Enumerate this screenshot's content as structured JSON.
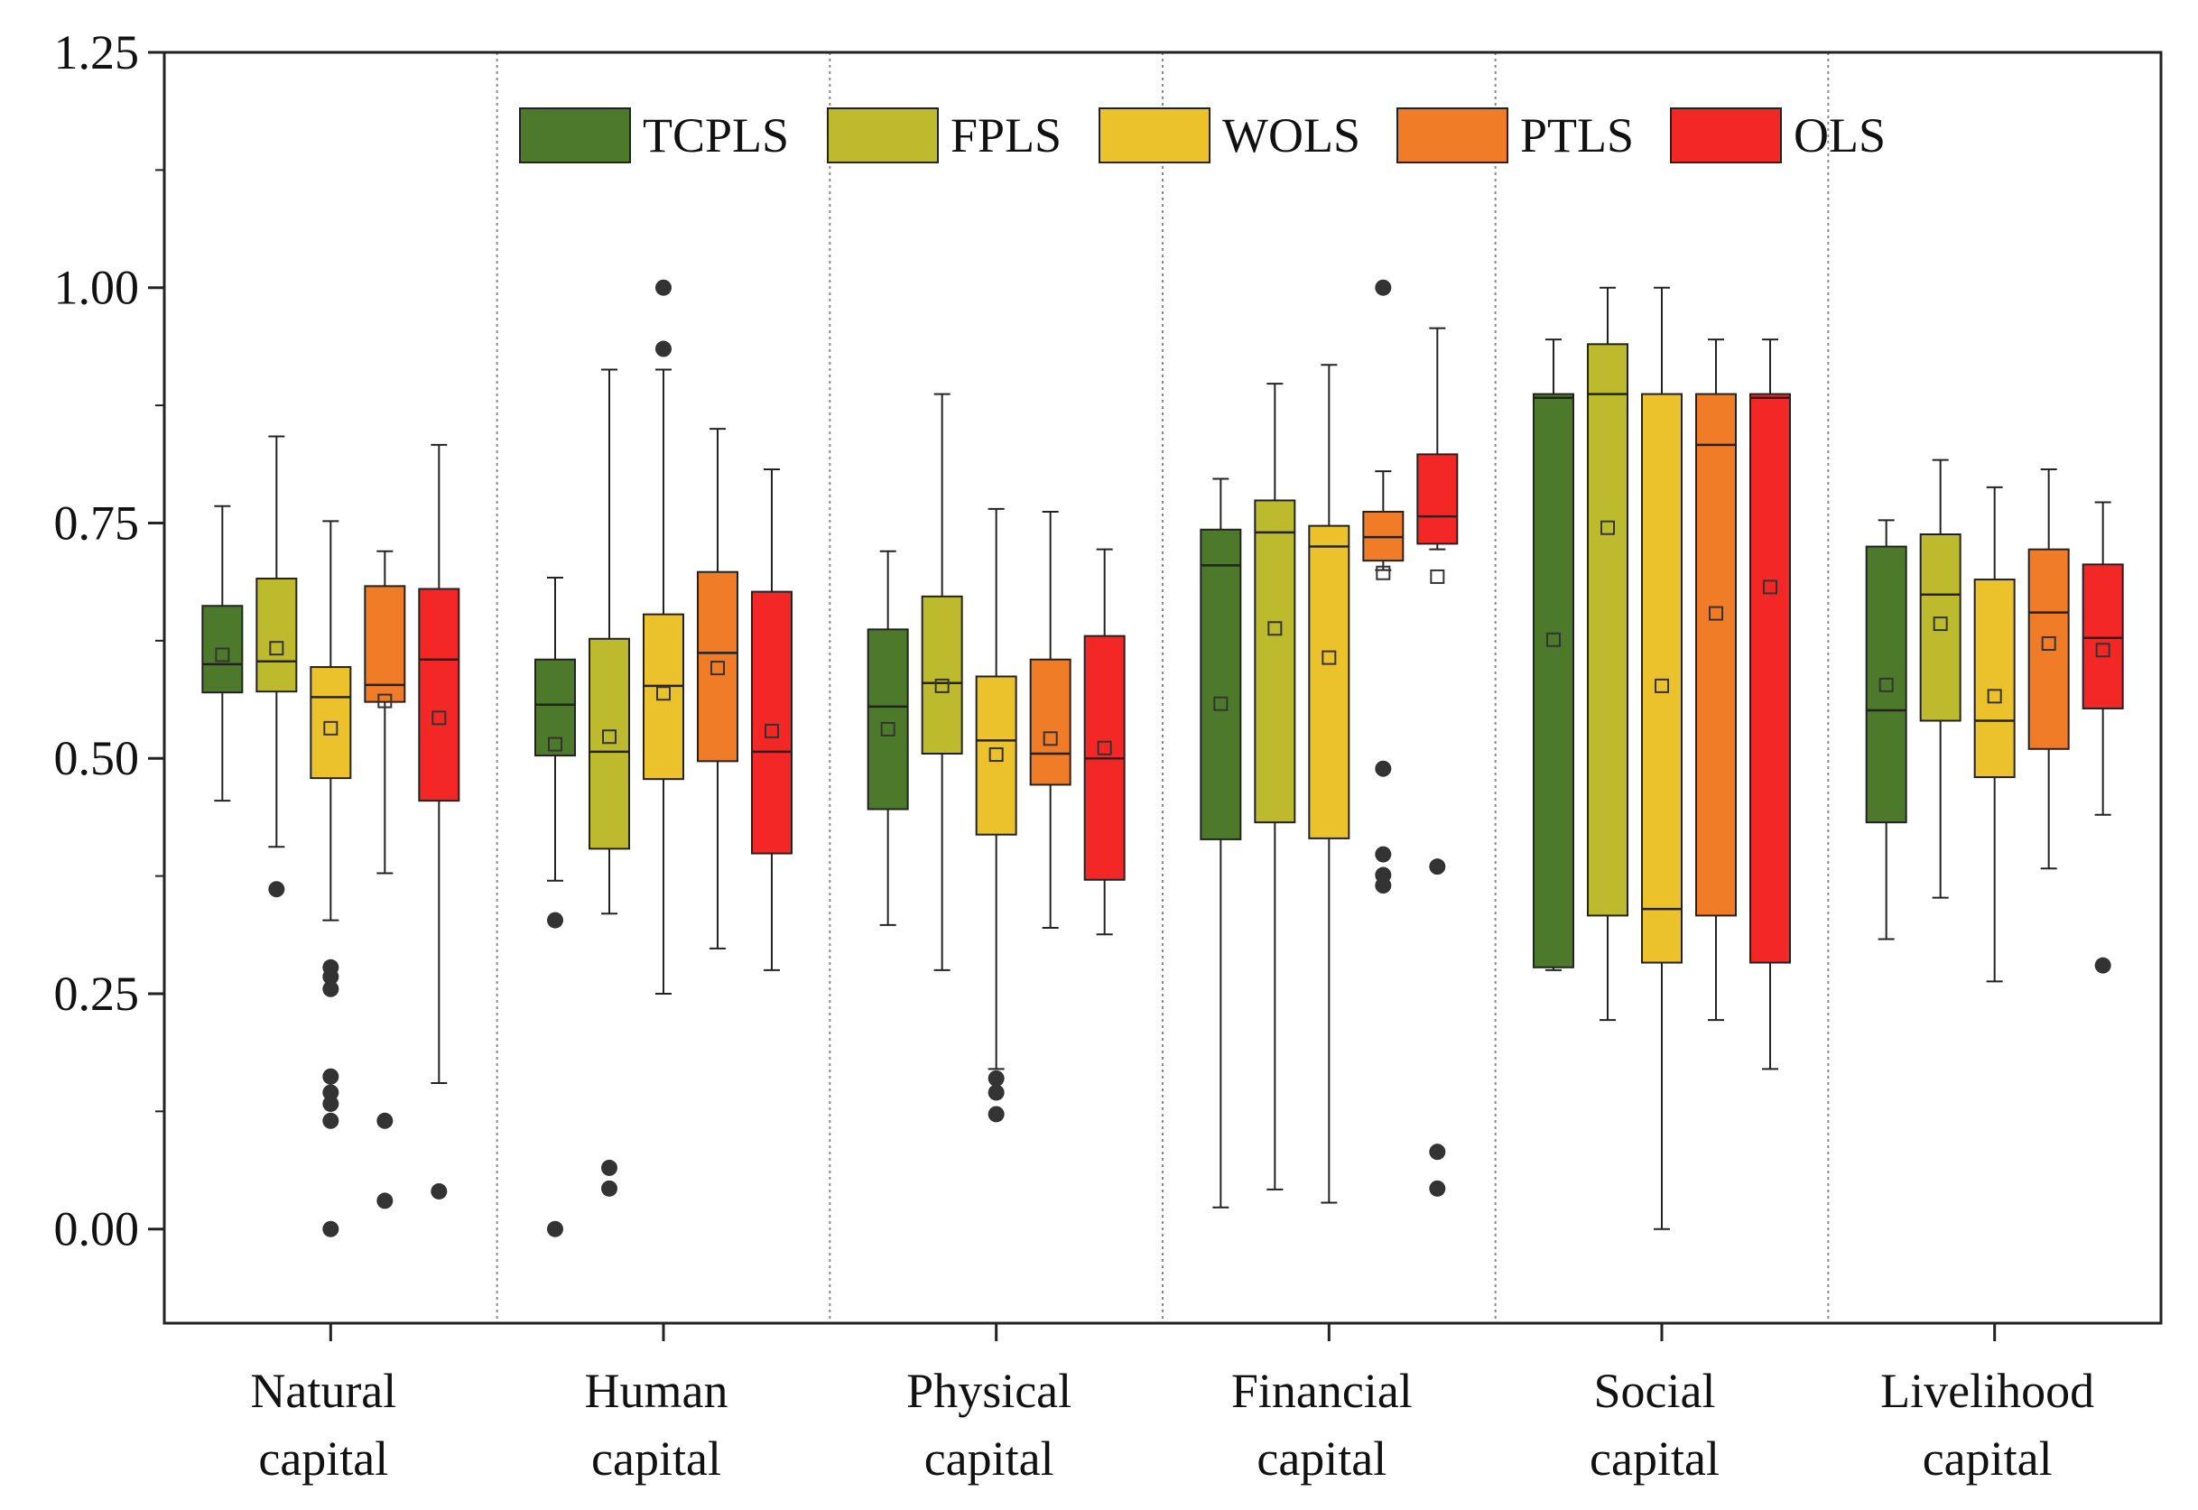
{
  "chart_data": {
    "type": "box",
    "title": "",
    "xlabel": "",
    "ylabel": "",
    "ylim": [
      -0.1,
      1.25
    ],
    "yticks": [
      0.0,
      0.25,
      0.5,
      0.75,
      1.0,
      1.25
    ],
    "ytick_labels": [
      "0.00",
      "0.25",
      "0.50",
      "0.75",
      "1.00",
      "1.25"
    ],
    "grid": false,
    "group_separators": true,
    "legend_position": "top-center",
    "categories": [
      {
        "line1": "Natural",
        "line2": "capital"
      },
      {
        "line1": "Human",
        "line2": "capital"
      },
      {
        "line1": "Physical",
        "line2": "capital"
      },
      {
        "line1": "Financial",
        "line2": "capital"
      },
      {
        "line1": "Social",
        "line2": "capital"
      },
      {
        "line1": "Livelihood",
        "line2": "capital"
      }
    ],
    "series": [
      {
        "name": "TCPLS",
        "color": "#4d7a2a",
        "boxes": [
          {
            "min": 0.455,
            "q1": 0.57,
            "median": 0.6,
            "q3": 0.662,
            "max": 0.768,
            "mean": 0.61,
            "outliers": []
          },
          {
            "min": 0.37,
            "q1": 0.503,
            "median": 0.557,
            "q3": 0.605,
            "max": 0.692,
            "mean": 0.515,
            "outliers": [
              0.328,
              0.0
            ]
          },
          {
            "min": 0.323,
            "q1": 0.446,
            "median": 0.555,
            "q3": 0.637,
            "max": 0.72,
            "mean": 0.531,
            "outliers": []
          },
          {
            "min": 0.023,
            "q1": 0.414,
            "median": 0.705,
            "q3": 0.743,
            "max": 0.797,
            "mean": 0.558,
            "outliers": []
          },
          {
            "min": 0.275,
            "q1": 0.278,
            "median": 0.883,
            "q3": 0.887,
            "max": 0.945,
            "mean": 0.626,
            "outliers": []
          },
          {
            "min": 0.308,
            "q1": 0.432,
            "median": 0.551,
            "q3": 0.725,
            "max": 0.753,
            "mean": 0.578,
            "outliers": []
          }
        ]
      },
      {
        "name": "FPLS",
        "color": "#bdba2e",
        "boxes": [
          {
            "min": 0.406,
            "q1": 0.571,
            "median": 0.603,
            "q3": 0.691,
            "max": 0.842,
            "mean": 0.617,
            "outliers": [
              0.361
            ]
          },
          {
            "min": 0.335,
            "q1": 0.404,
            "median": 0.507,
            "q3": 0.627,
            "max": 0.913,
            "mean": 0.523,
            "outliers": [
              0.065,
              0.043
            ]
          },
          {
            "min": 0.275,
            "q1": 0.505,
            "median": 0.58,
            "q3": 0.672,
            "max": 0.887,
            "mean": 0.577,
            "outliers": []
          },
          {
            "min": 0.042,
            "q1": 0.432,
            "median": 0.74,
            "q3": 0.774,
            "max": 0.898,
            "mean": 0.638,
            "outliers": []
          },
          {
            "min": 0.222,
            "q1": 0.333,
            "median": 0.887,
            "q3": 0.94,
            "max": 1.0,
            "mean": 0.745,
            "outliers": []
          },
          {
            "min": 0.352,
            "q1": 0.54,
            "median": 0.674,
            "q3": 0.738,
            "max": 0.817,
            "mean": 0.643,
            "outliers": []
          }
        ]
      },
      {
        "name": "WOLS",
        "color": "#ecc22c",
        "boxes": [
          {
            "min": 0.328,
            "q1": 0.479,
            "median": 0.565,
            "q3": 0.597,
            "max": 0.752,
            "mean": 0.532,
            "outliers": [
              0.278,
              0.268,
              0.255,
              0.162,
              0.145,
              0.133,
              0.115,
              0.0
            ]
          },
          {
            "min": 0.25,
            "q1": 0.478,
            "median": 0.577,
            "q3": 0.653,
            "max": 0.913,
            "mean": 0.569,
            "outliers": [
              1.0,
              0.935
            ]
          },
          {
            "min": 0.17,
            "q1": 0.419,
            "median": 0.519,
            "q3": 0.587,
            "max": 0.765,
            "mean": 0.504,
            "outliers": [
              0.16,
              0.145,
              0.122
            ]
          },
          {
            "min": 0.028,
            "q1": 0.415,
            "median": 0.725,
            "q3": 0.747,
            "max": 0.918,
            "mean": 0.607,
            "outliers": []
          },
          {
            "min": 0.0,
            "q1": 0.283,
            "median": 0.34,
            "q3": 0.887,
            "max": 1.0,
            "mean": 0.577,
            "outliers": []
          },
          {
            "min": 0.263,
            "q1": 0.48,
            "median": 0.54,
            "q3": 0.69,
            "max": 0.788,
            "mean": 0.566,
            "outliers": []
          }
        ]
      },
      {
        "name": "PTLS",
        "color": "#f17c27",
        "boxes": [
          {
            "min": 0.378,
            "q1": 0.56,
            "median": 0.578,
            "q3": 0.683,
            "max": 0.72,
            "mean": 0.561,
            "outliers": [
              0.115,
              0.03
            ]
          },
          {
            "min": 0.298,
            "q1": 0.497,
            "median": 0.612,
            "q3": 0.698,
            "max": 0.85,
            "mean": 0.596,
            "outliers": []
          },
          {
            "min": 0.32,
            "q1": 0.472,
            "median": 0.505,
            "q3": 0.605,
            "max": 0.762,
            "mean": 0.521,
            "outliers": []
          },
          {
            "min": 0.7,
            "q1": 0.71,
            "median": 0.735,
            "q3": 0.762,
            "max": 0.805,
            "mean": 0.697,
            "outliers": [
              1.0,
              0.489,
              0.398,
              0.376,
              0.365
            ]
          },
          {
            "min": 0.222,
            "q1": 0.333,
            "median": 0.833,
            "q3": 0.887,
            "max": 0.945,
            "mean": 0.654,
            "outliers": []
          },
          {
            "min": 0.383,
            "q1": 0.51,
            "median": 0.655,
            "q3": 0.722,
            "max": 0.807,
            "mean": 0.622,
            "outliers": []
          }
        ]
      },
      {
        "name": "OLS",
        "color": "#f42727",
        "boxes": [
          {
            "min": 0.155,
            "q1": 0.455,
            "median": 0.605,
            "q3": 0.68,
            "max": 0.833,
            "mean": 0.543,
            "outliers": [
              0.04
            ]
          },
          {
            "min": 0.275,
            "q1": 0.399,
            "median": 0.507,
            "q3": 0.677,
            "max": 0.807,
            "mean": 0.529,
            "outliers": []
          },
          {
            "min": 0.313,
            "q1": 0.371,
            "median": 0.5,
            "q3": 0.63,
            "max": 0.722,
            "mean": 0.511,
            "outliers": []
          },
          {
            "min": 0.722,
            "q1": 0.728,
            "median": 0.757,
            "q3": 0.823,
            "max": 0.957,
            "mean": 0.693,
            "outliers": [
              0.385,
              0.082,
              0.043
            ]
          },
          {
            "min": 0.17,
            "q1": 0.283,
            "median": 0.883,
            "q3": 0.887,
            "max": 0.945,
            "mean": 0.682,
            "outliers": []
          },
          {
            "min": 0.44,
            "q1": 0.553,
            "median": 0.628,
            "q3": 0.706,
            "max": 0.772,
            "mean": 0.615,
            "outliers": [
              0.28
            ]
          }
        ]
      }
    ]
  }
}
